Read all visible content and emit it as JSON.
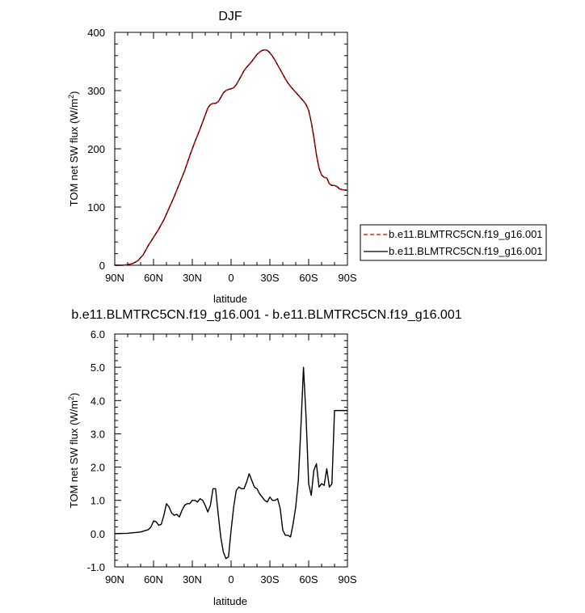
{
  "chart_data": [
    {
      "type": "line",
      "title": "DJF",
      "xlabel": "latitude",
      "ylabel_prefix": "TOM net SW flux (W/m",
      "ylabel_sup": "2",
      "ylabel_suffix": ")",
      "xlim": [
        -90,
        90
      ],
      "ylim": [
        0,
        400
      ],
      "xticks": [
        -90,
        -60,
        -30,
        0,
        30,
        60,
        90
      ],
      "xtick_labels": [
        "90N",
        "60N",
        "30N",
        "0",
        "30S",
        "60S",
        "90S"
      ],
      "yticks": [
        0,
        100,
        200,
        300,
        400
      ],
      "ytick_labels": [
        "0",
        "100",
        "200",
        "300",
        "400"
      ],
      "grid": false,
      "legend": "outside-right",
      "series": [
        {
          "name": "b.e11.BLMTRC5CN.f19_g16.001",
          "color": "#cc0000",
          "dash": "dashed",
          "x": [
            -90,
            -84,
            -80,
            -76,
            -72,
            -68,
            -64,
            -60,
            -56,
            -52,
            -48,
            -44,
            -40,
            -36,
            -32,
            -28,
            -24,
            -20,
            -18,
            -16,
            -14,
            -12,
            -10,
            -8,
            -6,
            -4,
            -2,
            0,
            2,
            4,
            6,
            8,
            10,
            12,
            14,
            16,
            18,
            20,
            22,
            24,
            26,
            28,
            30,
            32,
            34,
            36,
            38,
            40,
            42,
            44,
            46,
            48,
            50,
            52,
            54,
            56,
            58,
            60,
            62,
            64,
            66,
            68,
            70,
            72,
            74,
            76,
            78,
            80,
            82,
            84,
            86,
            88,
            90
          ],
          "y": [
            0,
            0,
            1,
            3,
            8,
            18,
            34,
            48,
            62,
            78,
            98,
            118,
            140,
            162,
            188,
            212,
            234,
            258,
            270,
            276,
            278,
            278,
            281,
            288,
            296,
            300,
            302,
            303,
            305,
            310,
            318,
            326,
            334,
            340,
            345,
            350,
            356,
            362,
            366,
            369,
            370,
            369,
            365,
            359,
            352,
            344,
            336,
            328,
            320,
            313,
            307,
            302,
            297,
            292,
            287,
            282,
            276,
            266,
            246,
            220,
            190,
            167,
            155,
            151,
            150,
            140,
            137,
            137,
            135,
            131,
            130,
            129,
            129
          ]
        },
        {
          "name": "b.e11.BLMTRC5CN.f19_g16.001",
          "color": "#000000",
          "dash": "solid",
          "x": [
            -90,
            -84,
            -80,
            -76,
            -72,
            -68,
            -64,
            -60,
            -56,
            -52,
            -48,
            -44,
            -40,
            -36,
            -32,
            -28,
            -24,
            -20,
            -18,
            -16,
            -14,
            -12,
            -10,
            -8,
            -6,
            -4,
            -2,
            0,
            2,
            4,
            6,
            8,
            10,
            12,
            14,
            16,
            18,
            20,
            22,
            24,
            26,
            28,
            30,
            32,
            34,
            36,
            38,
            40,
            42,
            44,
            46,
            48,
            50,
            52,
            54,
            56,
            58,
            60,
            62,
            64,
            66,
            68,
            70,
            72,
            74,
            76,
            78,
            80,
            82,
            84,
            86,
            88,
            90
          ],
          "y": [
            0,
            0,
            1,
            3,
            8,
            18,
            34,
            48,
            62,
            78,
            98,
            118,
            140,
            162,
            188,
            212,
            234,
            258,
            270,
            276,
            278,
            278,
            281,
            288,
            296,
            300,
            302,
            303,
            305,
            310,
            318,
            326,
            334,
            340,
            345,
            350,
            356,
            362,
            366,
            369,
            370,
            369,
            365,
            359,
            352,
            344,
            336,
            328,
            320,
            313,
            307,
            302,
            297,
            292,
            287,
            282,
            276,
            266,
            246,
            220,
            190,
            167,
            155,
            151,
            150,
            140,
            137,
            137,
            135,
            131,
            130,
            129,
            129
          ]
        }
      ]
    },
    {
      "type": "line",
      "title": "b.e11.BLMTRC5CN.f19_g16.001 - b.e11.BLMTRC5CN.f19_g16.001",
      "xlabel": "latitude",
      "ylabel_prefix": "TOM net SW flux (W/m",
      "ylabel_sup": "2",
      "ylabel_suffix": ")",
      "xlim": [
        -90,
        90
      ],
      "ylim": [
        -1,
        6
      ],
      "xticks": [
        -90,
        -60,
        -30,
        0,
        30,
        60,
        90
      ],
      "xtick_labels": [
        "90N",
        "60N",
        "30N",
        "0",
        "30S",
        "60S",
        "90S"
      ],
      "yticks": [
        -1,
        0,
        1,
        2,
        3,
        4,
        5,
        6
      ],
      "ytick_labels": [
        "-1.0",
        "0.0",
        "1.0",
        "2.0",
        "3.0",
        "4.0",
        "5.0",
        "6.0"
      ],
      "grid": false,
      "series": [
        {
          "color": "#000000",
          "dash": "solid",
          "x": [
            -90,
            -80,
            -70,
            -64,
            -62,
            -60,
            -58,
            -56,
            -54,
            -52,
            -50,
            -48,
            -46,
            -44,
            -42,
            -40,
            -38,
            -36,
            -34,
            -32,
            -30,
            -28,
            -26,
            -24,
            -22,
            -20,
            -18,
            -16,
            -14,
            -12,
            -10,
            -8,
            -6,
            -4,
            -2,
            0,
            2,
            4,
            6,
            8,
            10,
            12,
            14,
            16,
            18,
            20,
            22,
            24,
            26,
            28,
            30,
            32,
            34,
            36,
            38,
            40,
            42,
            44,
            46,
            48,
            50,
            52,
            54,
            56,
            58,
            60,
            62,
            64,
            66,
            68,
            70,
            72,
            74,
            76,
            78,
            80,
            82,
            84,
            86,
            88,
            90
          ],
          "y": [
            0,
            0.01,
            0.05,
            0.12,
            0.2,
            0.38,
            0.36,
            0.25,
            0.28,
            0.55,
            0.9,
            0.8,
            0.62,
            0.55,
            0.58,
            0.5,
            0.7,
            0.85,
            0.9,
            0.9,
            1.0,
            1.0,
            0.95,
            1.05,
            1.0,
            0.85,
            0.65,
            0.85,
            1.35,
            1.35,
            0.6,
            -0.1,
            -0.55,
            -0.75,
            -0.7,
            0.1,
            0.8,
            1.3,
            1.4,
            1.35,
            1.35,
            1.55,
            1.8,
            1.6,
            1.4,
            1.35,
            1.2,
            1.1,
            1.0,
            0.95,
            1.1,
            1.0,
            1.0,
            1.05,
            0.75,
            0.1,
            -0.05,
            -0.05,
            -0.1,
            0.3,
            0.8,
            1.6,
            3.2,
            5.0,
            3.5,
            1.5,
            1.15,
            1.9,
            2.1,
            1.4,
            1.5,
            1.45,
            1.95,
            1.4,
            1.5,
            3.7,
            3.7,
            3.7,
            3.7,
            3.7,
            3.7
          ]
        }
      ]
    }
  ]
}
